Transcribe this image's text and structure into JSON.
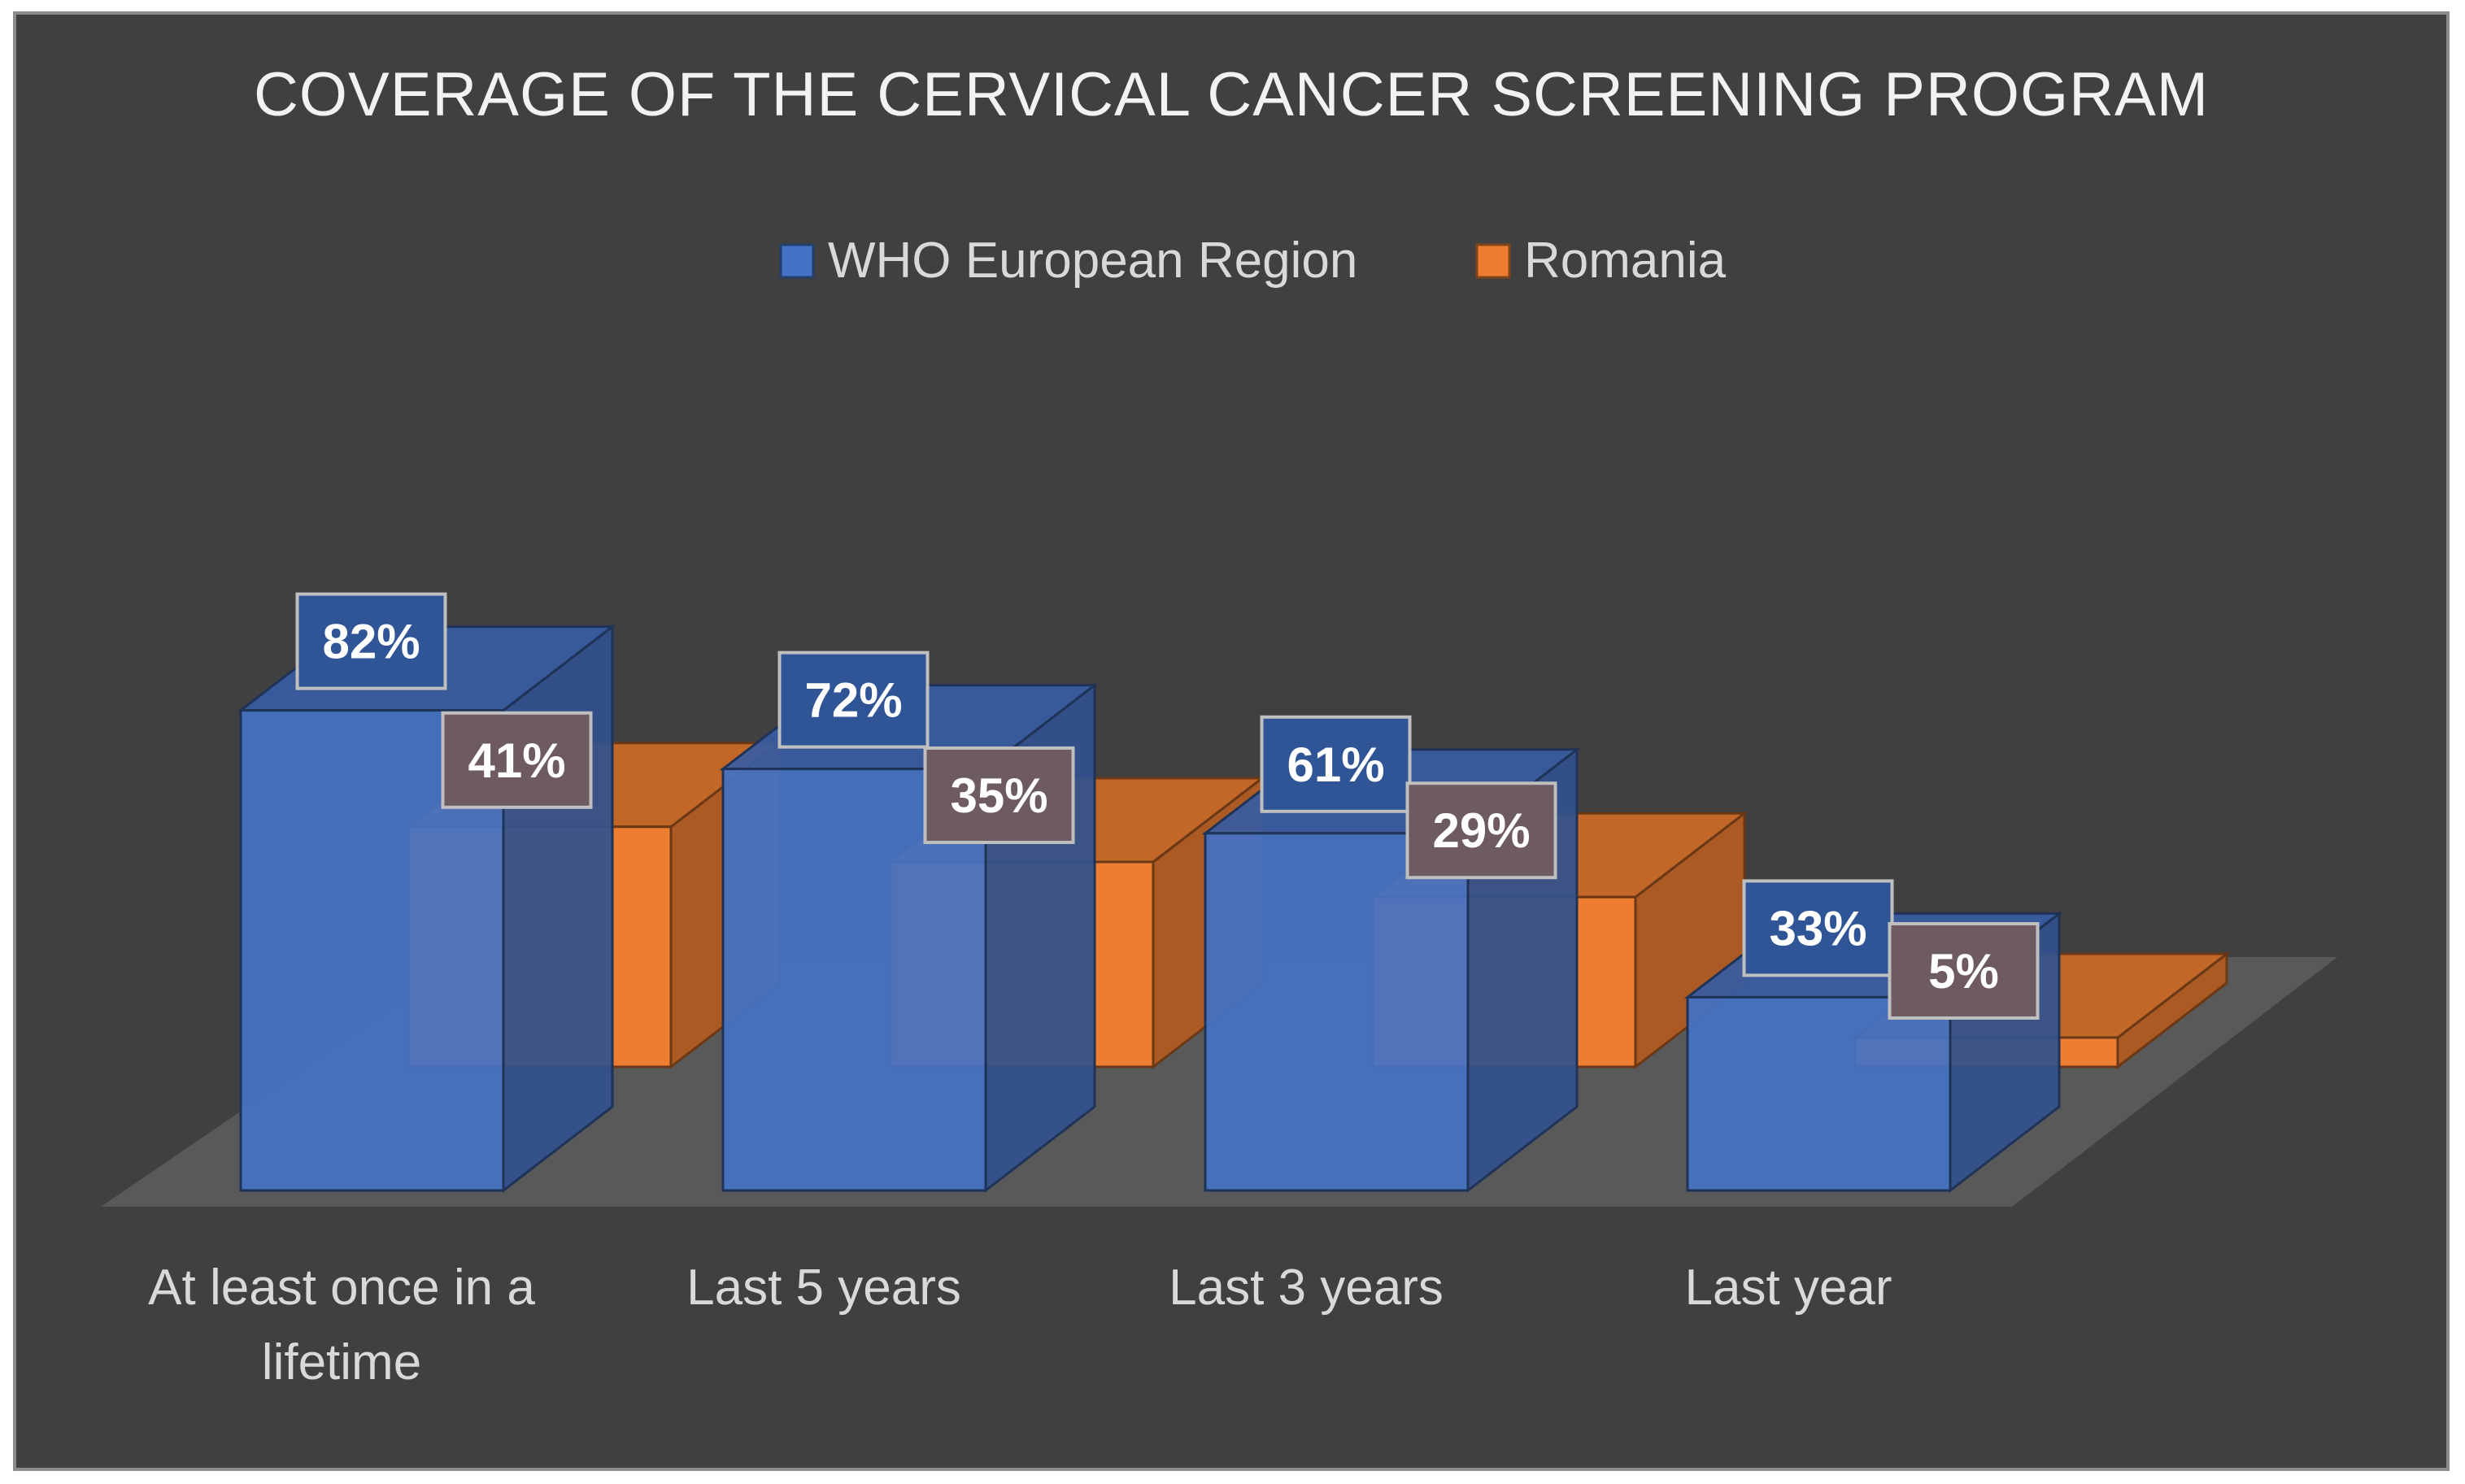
{
  "chart_data": {
    "type": "bar",
    "style": "3d-clustered",
    "title": "COVERAGE OF THE CERVICAL CANCER SCREENING PROGRAM",
    "categories": [
      [
        "At least once in a",
        "lifetime"
      ],
      [
        "Last 5 years"
      ],
      [
        "Last 3 years"
      ],
      [
        "Last year"
      ]
    ],
    "series": [
      {
        "name": "WHO European Region",
        "values": [
          82,
          72,
          61,
          33
        ],
        "labels": [
          "82%",
          "72%",
          "61%",
          "33%"
        ],
        "color": "#4472c4"
      },
      {
        "name": "Romania",
        "values": [
          41,
          35,
          29,
          5
        ],
        "labels": [
          "41%",
          "35%",
          "29%",
          "5%"
        ],
        "color": "#ed7d31"
      }
    ],
    "unit": "%",
    "legend_position": "top",
    "grid": false
  }
}
